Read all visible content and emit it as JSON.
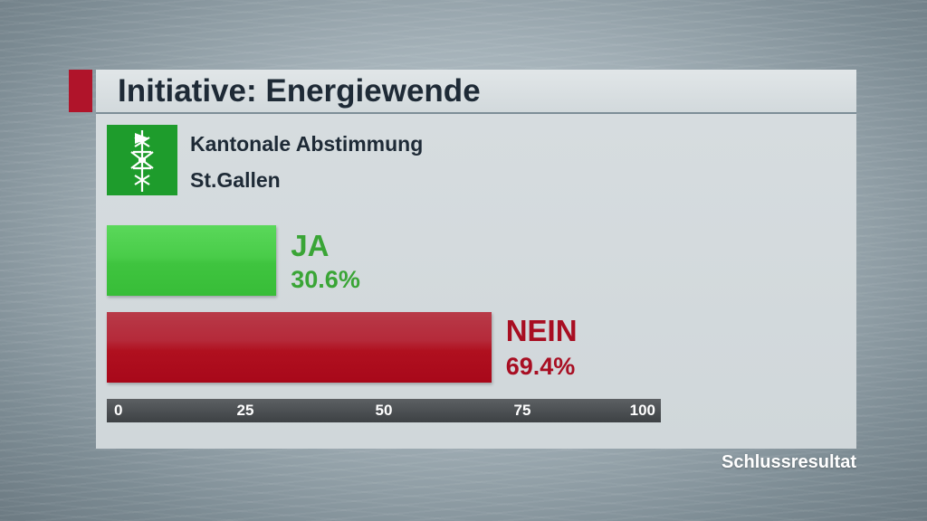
{
  "header": {
    "title": "Initiative: Energiewende",
    "accent_color": "#b0142a"
  },
  "subtitle": {
    "line1": "Kantonale Abstimmung",
    "line2": "St.Gallen",
    "flag_icon": "st-gallen-coat-of-arms-icon"
  },
  "chart_data": {
    "type": "bar",
    "orientation": "horizontal",
    "categories": [
      "JA",
      "NEIN"
    ],
    "values": [
      30.6,
      69.4
    ],
    "value_labels": [
      "30.6%",
      "69.4%"
    ],
    "colors": [
      "#3fc43f",
      "#b0101f"
    ],
    "label_colors": [
      "#3aa536",
      "#a80e22"
    ],
    "xlim": [
      0,
      100
    ],
    "xticks": [
      "0",
      "25",
      "50",
      "75",
      "100"
    ]
  },
  "footer": {
    "status": "Schlussresultat"
  }
}
